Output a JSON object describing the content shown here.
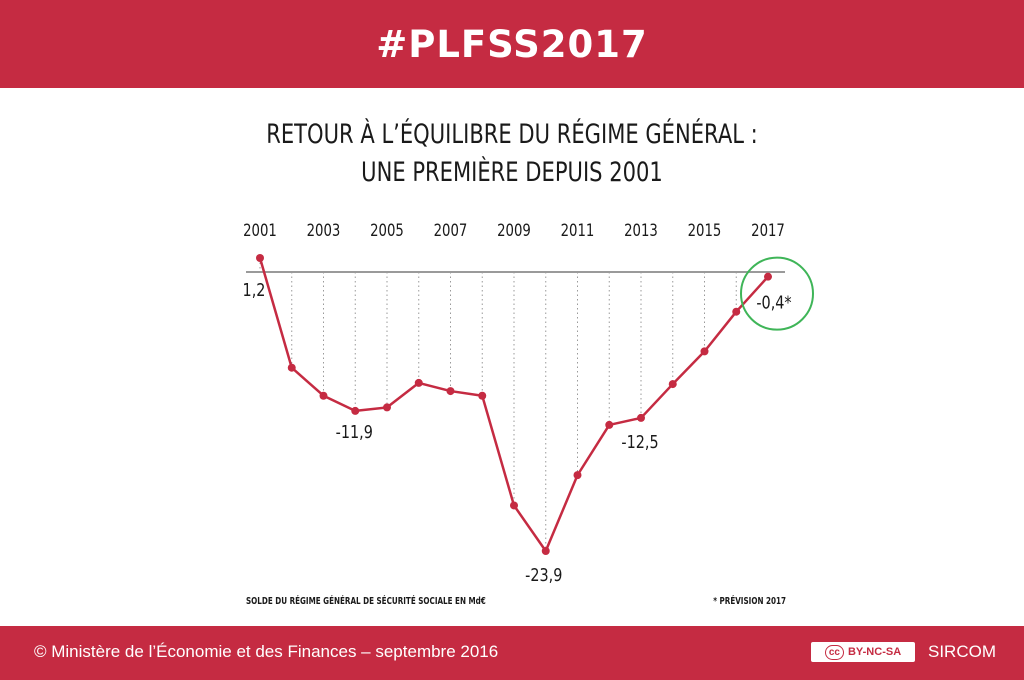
{
  "header": {
    "hashtag": "#PLFSS2017"
  },
  "title": {
    "line1": "RETOUR À L’ÉQUILIBRE DU RÉGIME GÉNÉRAL :",
    "line2": "UNE PREMIÈRE DEPUIS 2001"
  },
  "colors": {
    "brand": "#c52b42",
    "line": "#c52b42",
    "highlight": "#3fb558",
    "axis": "#9a9a9a"
  },
  "chart_data": {
    "type": "line",
    "x": [
      2001,
      2002,
      2003,
      2004,
      2005,
      2006,
      2007,
      2008,
      2009,
      2010,
      2011,
      2012,
      2013,
      2014,
      2015,
      2016,
      2017
    ],
    "values": [
      1.2,
      -8.2,
      -10.6,
      -11.9,
      -11.6,
      -9.5,
      -10.2,
      -10.6,
      -20.0,
      -23.9,
      -17.4,
      -13.1,
      -12.5,
      -9.6,
      -6.8,
      -3.4,
      -0.4
    ],
    "tick_labels": [
      "2001",
      "2003",
      "2005",
      "2007",
      "2009",
      "2011",
      "2013",
      "2015",
      "2017"
    ],
    "ylim": [
      -23.9,
      1.2
    ],
    "data_labels": [
      {
        "year": 2001,
        "text": "1,2"
      },
      {
        "year": 2004,
        "text": "-11,9"
      },
      {
        "year": 2010,
        "text": "-23,9"
      },
      {
        "year": 2013,
        "text": "-12,5"
      },
      {
        "year": 2017,
        "text": "-0,4*"
      }
    ],
    "highlight_year": 2017,
    "source_label": "SOLDE DU RÉGIME GÉNÉRAL DE SÉCURITÉ SOCIALE EN Md€",
    "footnote": "* PRÉVISION 2017",
    "grid": false
  },
  "footer": {
    "copyright": "© Ministère de l’Économie et des Finances – septembre 2016",
    "license_cc": "cc",
    "license": "BY-NC-SA",
    "org": "SIRCOM"
  }
}
